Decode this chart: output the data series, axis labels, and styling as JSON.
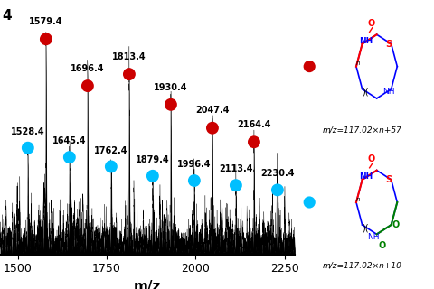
{
  "title_corner": "4",
  "xlabel": "m/z",
  "xlim": [
    1450,
    2280
  ],
  "red_peaks": [
    1579.4,
    1696.4,
    1813.4,
    1930.4,
    2047.4,
    2164.4
  ],
  "cyan_peaks": [
    1528.4,
    1645.4,
    1762.4,
    1879.4,
    1996.4,
    2113.4,
    2230.4
  ],
  "red_heights": [
    0.88,
    0.68,
    0.73,
    0.6,
    0.5,
    0.44
  ],
  "cyan_heights": [
    0.42,
    0.38,
    0.34,
    0.3,
    0.28,
    0.26,
    0.24
  ],
  "red_color": "#CC0000",
  "cyan_color": "#00BFFF",
  "dot_size": 100,
  "label_fontsize": 7.0,
  "xlabel_fontsize": 11,
  "xtick_fontsize": 9,
  "formula1": "m/z=117.02×n+57",
  "formula2": "m/z=117.02×n+10"
}
